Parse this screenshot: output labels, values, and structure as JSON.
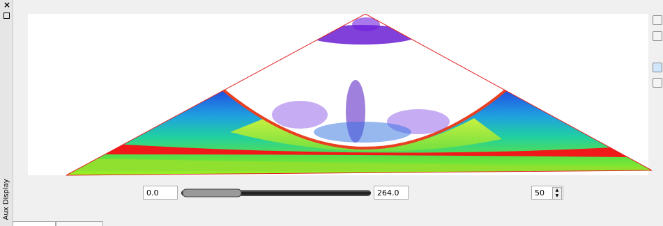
{
  "panel": {
    "title": "Aux Display"
  },
  "controls": {
    "min_value": "0.0",
    "max_value": "264.0",
    "spin_value": "50"
  }
}
